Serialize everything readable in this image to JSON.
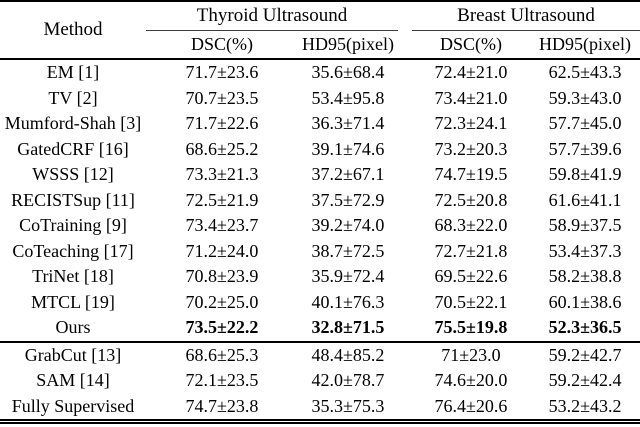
{
  "table": {
    "method_header": "Method",
    "groups": [
      {
        "label": "Thyroid Ultrasound"
      },
      {
        "label": "Breast Ultrasound"
      }
    ],
    "subheaders": [
      "DSC(%)",
      "HD95(pixel)",
      "DSC(%)",
      "HD95(pixel)"
    ],
    "sections": [
      {
        "rows": [
          {
            "method": "EM [1]",
            "values": [
              "71.7±23.6",
              "35.6±68.4",
              "72.4±21.0",
              "62.5±43.3"
            ]
          },
          {
            "method": "TV [2]",
            "values": [
              "70.7±23.5",
              "53.4±95.8",
              "73.4±21.0",
              "59.3±43.0"
            ]
          },
          {
            "method": "Mumford-Shah [3]",
            "values": [
              "71.7±22.6",
              "36.3±71.4",
              "72.3±24.1",
              "57.7±45.0"
            ]
          },
          {
            "method": "GatedCRF [16]",
            "values": [
              "68.6±25.2",
              "39.1±74.6",
              "73.2±20.3",
              "57.7±39.6"
            ]
          },
          {
            "method": "WSSS [12]",
            "values": [
              "73.3±21.3",
              "37.2±67.1",
              "74.7±19.5",
              "59.8±41.9"
            ]
          },
          {
            "method": "RECISTSup [11]",
            "values": [
              "72.5±21.9",
              "37.5±72.9",
              "72.5±20.8",
              "61.6±41.1"
            ]
          },
          {
            "method": "CoTraining [9]",
            "values": [
              "73.4±23.7",
              "39.2±74.0",
              "68.3±22.0",
              "58.9±37.5"
            ]
          },
          {
            "method": "CoTeaching [17]",
            "values": [
              "71.2±24.0",
              "38.7±72.5",
              "72.7±21.8",
              "53.4±37.3"
            ]
          },
          {
            "method": "TriNet [18]",
            "values": [
              "70.8±23.9",
              "35.9±72.4",
              "69.5±22.6",
              "58.2±38.8"
            ]
          },
          {
            "method": "MTCL [19]",
            "values": [
              "70.2±25.0",
              "40.1±76.3",
              "70.5±22.1",
              "60.1±38.6"
            ]
          },
          {
            "method": "Ours",
            "values": [
              "73.5±22.2",
              "32.8±71.5",
              "75.5±19.8",
              "52.3±36.5"
            ],
            "bold_values": true
          }
        ]
      },
      {
        "rows": [
          {
            "method": "GrabCut [13]",
            "values": [
              "68.6±25.3",
              "48.4±85.2",
              "71±23.0",
              "59.2±42.7"
            ]
          },
          {
            "method": "SAM [14]",
            "values": [
              "72.1±23.5",
              "42.0±78.7",
              "74.6±20.0",
              "59.2±42.4"
            ]
          },
          {
            "method": "Fully Supervised",
            "values": [
              "74.7±23.8",
              "35.3±75.3",
              "76.4±20.6",
              "53.2±43.2"
            ]
          }
        ]
      }
    ]
  }
}
